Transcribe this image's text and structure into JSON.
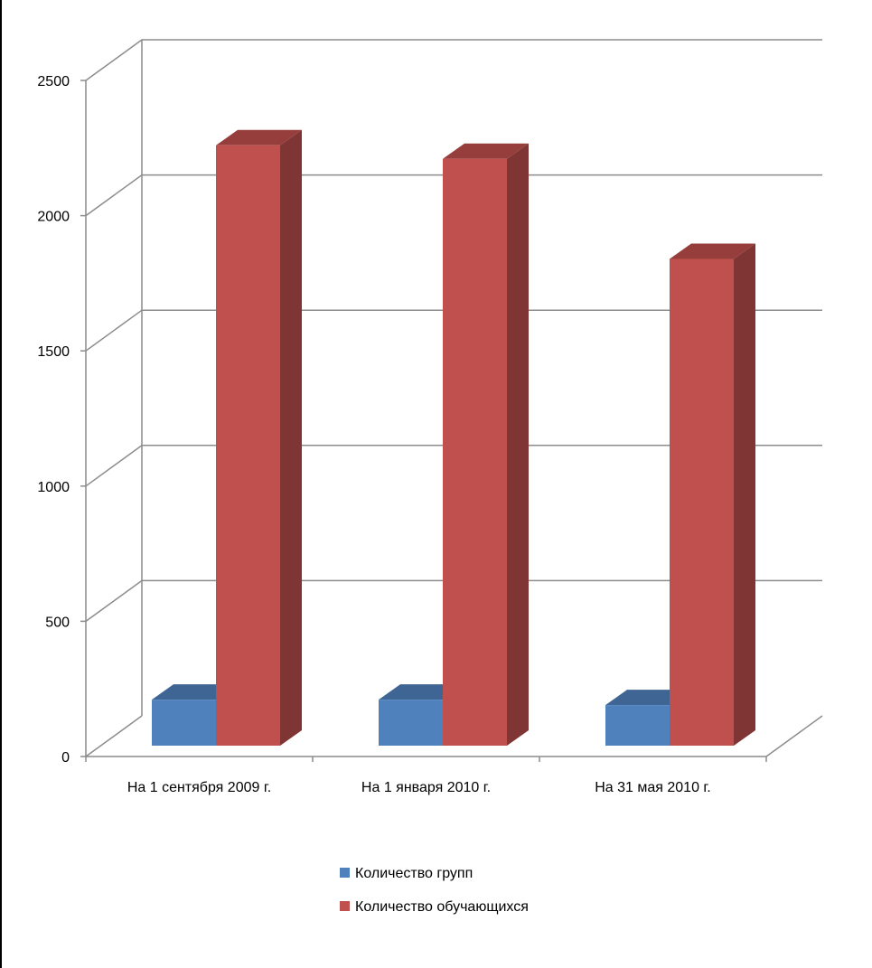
{
  "chart_data": {
    "type": "bar",
    "subtype": "3d-clustered-column",
    "title": "",
    "xlabel": "",
    "ylabel": "",
    "categories": [
      "На 1 сентября 2009 г.",
      "На 1 января 2010 г.",
      "На 31 мая 2010 г."
    ],
    "series": [
      {
        "name": "Количество групп",
        "values": [
          170,
          170,
          150
        ],
        "color": "#4F81BD"
      },
      {
        "name": "Количество обучающихся",
        "values": [
          2220,
          2170,
          1800
        ],
        "color": "#C0504D"
      }
    ],
    "ylim": [
      0,
      2500
    ],
    "yticks": [
      "0",
      "500",
      "1000",
      "1500",
      "2000",
      "2500"
    ],
    "grid": true,
    "legend": "bottom"
  }
}
